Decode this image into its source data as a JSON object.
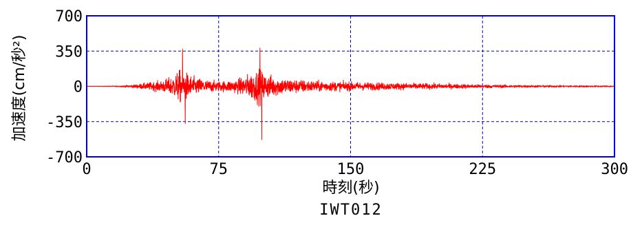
{
  "chart_data": {
    "type": "line",
    "title": "",
    "xlabel": "時刻(秒)",
    "ylabel": "加速度(cm/秒²)",
    "station": "IWT012",
    "xlim": [
      0,
      300
    ],
    "ylim": [
      -700,
      700
    ],
    "x_ticks": [
      "0",
      "75",
      "150",
      "225",
      "300"
    ],
    "y_ticks": [
      "700",
      "350",
      "0",
      "-350",
      "-700"
    ],
    "x_tick_values": [
      0,
      75,
      150,
      225,
      300
    ],
    "y_tick_values": [
      700,
      350,
      0,
      -350,
      -700
    ],
    "grid": true,
    "colors": {
      "signal": "#ff0000",
      "frame": "#0000cc",
      "grid": "#0000aa"
    },
    "series": [
      {
        "sample_interval_s": 0.1,
        "envelope": {
          "t": [
            0,
            10,
            20,
            28,
            35,
            42,
            48,
            50,
            52,
            54,
            56,
            58,
            62,
            68,
            75,
            82,
            86,
            90,
            94,
            96,
            98,
            100,
            102,
            106,
            112,
            120,
            130,
            140,
            150,
            160,
            175,
            190,
            210,
            225,
            240,
            260,
            280,
            300
          ],
          "amplitude": [
            2,
            5,
            15,
            40,
            80,
            120,
            200,
            260,
            330,
            390,
            330,
            260,
            190,
            140,
            110,
            130,
            160,
            230,
            300,
            340,
            380,
            330,
            270,
            230,
            180,
            150,
            120,
            105,
            95,
            85,
            75,
            65,
            50,
            40,
            32,
            25,
            20,
            15
          ]
        },
        "peaks": [
          {
            "t": 54.5,
            "value": 370
          },
          {
            "t": 56.0,
            "value": -370
          },
          {
            "t": 98.5,
            "value": 380
          },
          {
            "t": 99.5,
            "value": -530
          }
        ]
      }
    ]
  }
}
